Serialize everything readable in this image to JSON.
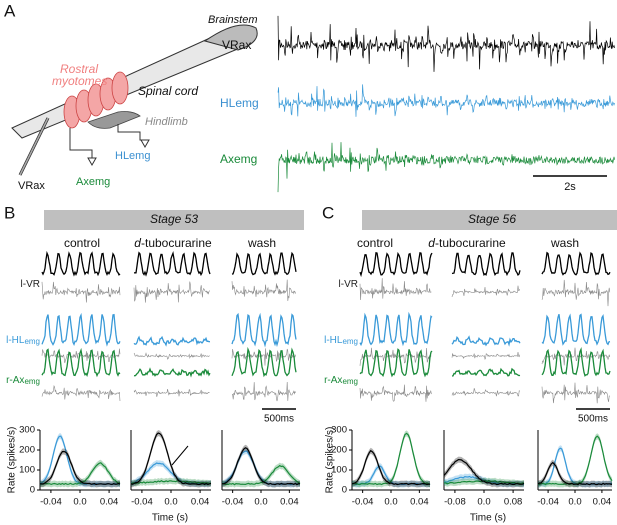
{
  "panel_a": {
    "letter": "A",
    "diagram": {
      "brainstem": "Brainstem",
      "rostral": "Rostral",
      "myotomes": "myotomes",
      "spinal_cord": "Spinal cord",
      "hindlimb": "Hindlimb",
      "hlemg": "HLemg",
      "axemg": "Axemg",
      "vrax": "VRax"
    },
    "traces": [
      "VRax",
      "HLemg",
      "Axemg"
    ],
    "scale": "2s"
  },
  "panel_b": {
    "letter": "B",
    "stage": "Stage 53",
    "columns": {
      "control": "control",
      "drug_prefix": "d",
      "drug_rest": "-tubocurarine",
      "wash": "wash"
    },
    "rows": [
      {
        "main": "l-VR"
      },
      {
        "main": "l-HL",
        "sub": "emg"
      },
      {
        "main": "r-Ax",
        "sub": "emg"
      }
    ],
    "scale": "500ms",
    "rate": {
      "ylabel": "Rate (spikes/s)",
      "ylim": [
        0,
        300
      ],
      "yticks": [
        0,
        100,
        200,
        300
      ],
      "xlabel": "Time (s)",
      "plots": [
        {
          "xlim": [
            -0.055,
            0.055
          ],
          "xticks": [
            -0.04,
            {
              "value": 0,
              "label": "0.0"
            },
            0.04
          ]
        },
        {
          "xlim": [
            -0.055,
            0.055
          ],
          "xticks": [
            -0.04,
            {
              "value": 0,
              "label": "0.0"
            },
            0.04
          ]
        },
        {
          "xlim": [
            -0.055,
            0.055
          ],
          "xticks": [
            -0.04,
            {
              "value": 0,
              "label": "0.0"
            },
            0.04
          ]
        }
      ]
    }
  },
  "panel_c": {
    "letter": "C",
    "stage": "Stage 56",
    "columns": {
      "control": "control",
      "drug_prefix": "d",
      "drug_rest": "-tubocurarine",
      "wash": "wash"
    },
    "rows": [
      {
        "main": "l-VR"
      },
      {
        "main": "l-HL",
        "sub": "emg"
      },
      {
        "main": "r-Ax",
        "sub": "emg"
      }
    ],
    "scale": "500ms",
    "rate": {
      "ylabel": "Rate (spikes/s)",
      "ylim": [
        0,
        300
      ],
      "yticks": [
        0,
        100,
        200,
        300
      ],
      "xlabel": "Time (s)",
      "plots": [
        {
          "xlim": [
            -0.055,
            0.055
          ],
          "xticks": [
            -0.04,
            {
              "value": 0,
              "label": "0.0"
            },
            0.04
          ]
        },
        {
          "xlim": [
            -0.11,
            0.11
          ],
          "xticks": [
            -0.08,
            {
              "value": 0,
              "label": "0.0"
            },
            0.08
          ]
        },
        {
          "xlim": [
            -0.055,
            0.055
          ],
          "xticks": [
            -0.04,
            {
              "value": 0,
              "label": "0.0"
            },
            0.04
          ]
        }
      ]
    }
  }
}
